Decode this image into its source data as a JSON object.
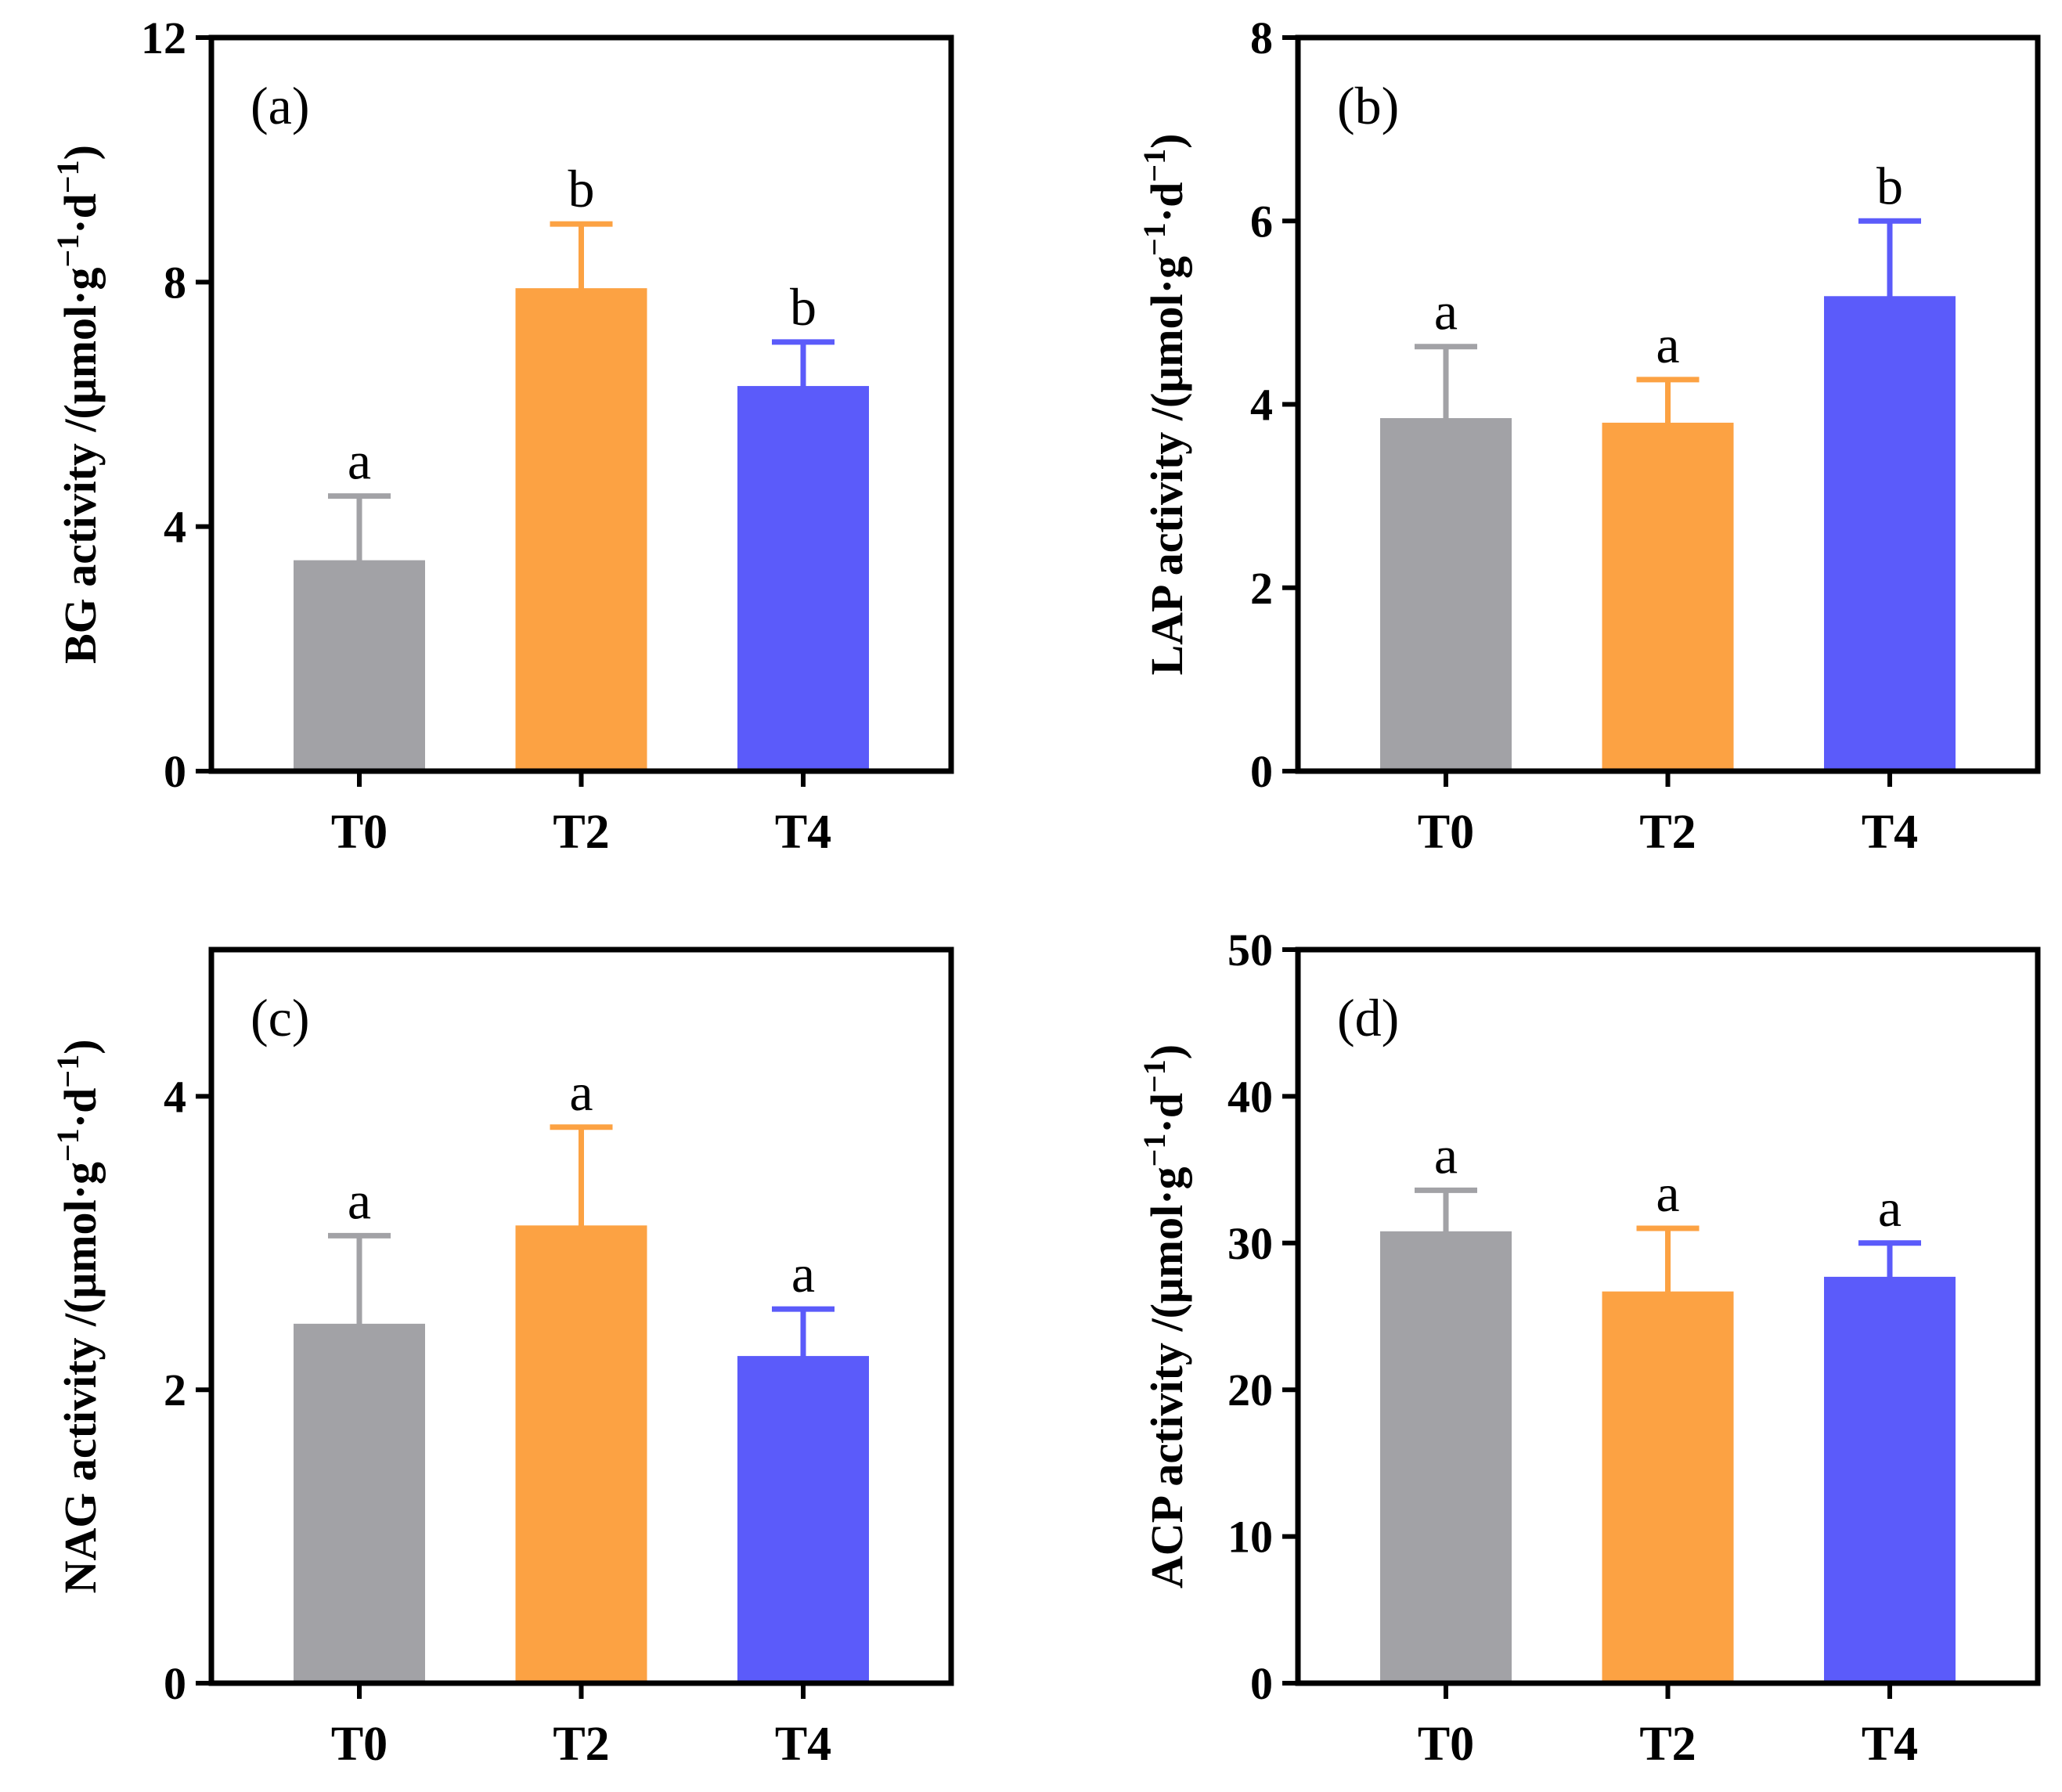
{
  "colors": {
    "T0": "#a2a2a6",
    "T2": "#fca243",
    "T4": "#5b5bfa"
  },
  "chart_data": [
    {
      "type": "bar",
      "panel": "(a)",
      "categories": [
        "T0",
        "T2",
        "T4"
      ],
      "values": [
        3.45,
        7.9,
        6.3
      ],
      "errors": [
        1.05,
        1.05,
        0.72
      ],
      "letters": [
        "a",
        "b",
        "b"
      ],
      "ylabel": {
        "main": "BG activity /(μmol·g",
        "sup1": "−1",
        "mid": "·d",
        "sup2": "−1",
        "end": ")"
      },
      "ylim": [
        0,
        12
      ],
      "yticks": [
        0,
        4,
        8,
        12
      ]
    },
    {
      "type": "bar",
      "panel": "(b)",
      "categories": [
        "T0",
        "T2",
        "T4"
      ],
      "values": [
        3.85,
        3.8,
        5.18
      ],
      "errors": [
        0.78,
        0.47,
        0.82
      ],
      "letters": [
        "a",
        "a",
        "b"
      ],
      "ylabel": {
        "main": "LAP activity /(μmol·g",
        "sup1": "−1",
        "mid": "·d",
        "sup2": "−1",
        "end": ")"
      },
      "ylim": [
        0,
        8
      ],
      "yticks": [
        0,
        2,
        4,
        6,
        8
      ]
    },
    {
      "type": "bar",
      "panel": "(c)",
      "categories": [
        "T0",
        "T2",
        "T4"
      ],
      "values": [
        2.45,
        3.12,
        2.23
      ],
      "errors": [
        0.6,
        0.67,
        0.32
      ],
      "letters": [
        "a",
        "a",
        "a"
      ],
      "ylabel": {
        "main": "NAG activity /(μmol·g",
        "sup1": "−1",
        "mid": "·d",
        "sup2": "−1",
        "end": ")"
      },
      "ylim": [
        0,
        5
      ],
      "yticks": [
        0,
        2,
        4
      ]
    },
    {
      "type": "bar",
      "panel": "(d)",
      "categories": [
        "T0",
        "T2",
        "T4"
      ],
      "values": [
        30.8,
        26.7,
        27.7
      ],
      "errors": [
        2.8,
        4.3,
        2.3
      ],
      "letters": [
        "a",
        "a",
        "a"
      ],
      "ylabel": {
        "main": "ACP activity /(μmol·g",
        "sup1": "−1",
        "mid": "·d",
        "sup2": "−1",
        "end": ")"
      },
      "ylim": [
        0,
        50
      ],
      "yticks": [
        0,
        10,
        20,
        30,
        40,
        50
      ]
    }
  ]
}
